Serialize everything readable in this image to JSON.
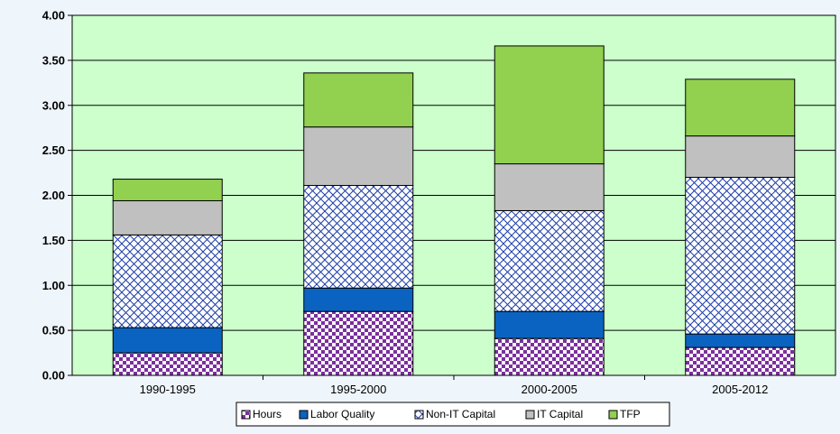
{
  "chart_data": {
    "type": "bar",
    "stacked": true,
    "categories": [
      "1990-1995",
      "1995-2000",
      "2000-2005",
      "2005-2012"
    ],
    "series": [
      {
        "name": "Hours",
        "values": [
          0.25,
          0.71,
          0.41,
          0.31
        ],
        "color": "#7b2f9e",
        "pattern": "checker"
      },
      {
        "name": "Labor Quality",
        "values": [
          0.28,
          0.26,
          0.3,
          0.15
        ],
        "color": "#0a63c0",
        "pattern": "solid"
      },
      {
        "name": "Non-IT Capital",
        "values": [
          1.03,
          1.14,
          1.12,
          1.74
        ],
        "color": "#1f3fa8",
        "pattern": "crosshatch"
      },
      {
        "name": "IT Capital",
        "values": [
          0.38,
          0.65,
          0.52,
          0.46
        ],
        "color": "#c0c0c0",
        "pattern": "solid"
      },
      {
        "name": "TFP",
        "values": [
          0.24,
          0.6,
          1.31,
          0.63
        ],
        "color": "#92d050",
        "pattern": "solid"
      }
    ],
    "y_ticks": [
      "0.00",
      "0.50",
      "1.00",
      "1.50",
      "2.00",
      "2.50",
      "3.00",
      "3.50",
      "4.00"
    ],
    "ylim": [
      0,
      4
    ],
    "title": "",
    "xlabel": "",
    "ylabel": "",
    "grid": true,
    "legend_position": "bottom",
    "plot_background": "#ccffcc"
  }
}
